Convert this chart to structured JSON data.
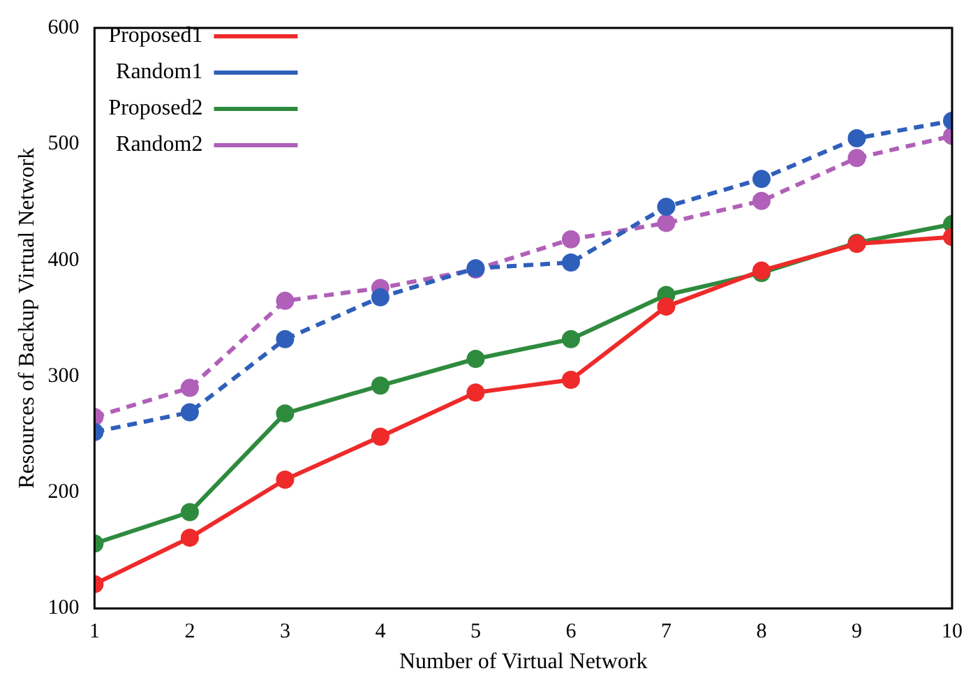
{
  "chart_data": {
    "type": "line",
    "xlabel": "Number of Virtual Network",
    "ylabel": "Resources of Backup Virtual Network",
    "x": [
      1,
      2,
      3,
      4,
      5,
      6,
      7,
      8,
      9,
      10
    ],
    "series": [
      {
        "name": "Proposed1",
        "color": "#ee2a2a",
        "line_style": "solid",
        "values": [
          121,
          161,
          211,
          248,
          286,
          297,
          360,
          391,
          414,
          420
        ]
      },
      {
        "name": "Random1",
        "color": "#2f5fba",
        "line_style": "dashed",
        "values": [
          252,
          269,
          332,
          368,
          393,
          398,
          446,
          470,
          505,
          520
        ]
      },
      {
        "name": "Proposed2",
        "color": "#2e8b3e",
        "line_style": "solid",
        "values": [
          156,
          183,
          268,
          292,
          315,
          332,
          370,
          389,
          415,
          431
        ]
      },
      {
        "name": "Random2",
        "color": "#b060b8",
        "line_style": "dashed",
        "values": [
          265,
          290,
          365,
          376,
          392,
          418,
          432,
          451,
          488,
          507
        ]
      }
    ],
    "xlim": [
      1,
      10
    ],
    "xticks": [
      1,
      2,
      3,
      4,
      5,
      6,
      7,
      8,
      9,
      10
    ],
    "ylim": [
      100,
      600
    ],
    "yticks": [
      100,
      200,
      300,
      400,
      500,
      600
    ],
    "grid": false,
    "legend": "top left",
    "marker": "circle"
  }
}
